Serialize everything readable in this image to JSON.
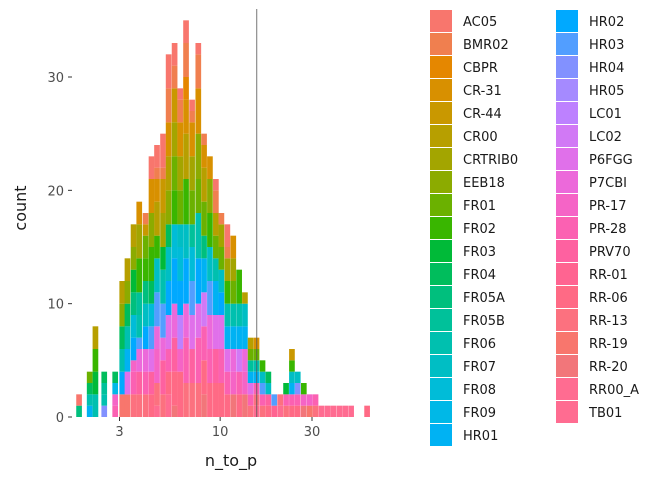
{
  "chart_data": {
    "type": "bar",
    "subtype": "stacked histogram",
    "title": "",
    "xlabel": "n_to_p",
    "ylabel": "count",
    "x_scale": "log10",
    "x_ticks": [
      3,
      10,
      30
    ],
    "x_tick_labels": [
      "3",
      "10",
      "30"
    ],
    "xlim": [
      1.7,
      80
    ],
    "ylim": [
      0,
      36
    ],
    "y_ticks": [
      0,
      10,
      20,
      30
    ],
    "y_tick_labels": [
      "0",
      "10",
      "20",
      "30"
    ],
    "vline_x": 15.5,
    "grid": false,
    "legend_position": "right",
    "legend_columns": 2,
    "bins": [
      {
        "center": 1.85,
        "counts": {
          "FR05A": 1,
          "AC05": 1
        }
      },
      {
        "center": 2.1,
        "counts": {
          "FR06": 1,
          "FR04": 1,
          "HR01": 1,
          "FR01": 1
        }
      },
      {
        "center": 2.25,
        "counts": {
          "FR03": 2,
          "FR06": 2,
          "FR02": 2,
          "CR00": 2
        }
      },
      {
        "center": 2.5,
        "counts": {
          "HR04": 1,
          "FR05B": 1,
          "FR06": 1,
          "FR04": 1
        }
      },
      {
        "center": 2.85,
        "counts": {
          "PR-17": 1,
          "PR-28": 1,
          "FR09": 1,
          "FR04": 1
        }
      },
      {
        "center": 3.1,
        "counts": {
          "RR-19": 2,
          "HR02": 2,
          "FR06": 2,
          "FR04": 2,
          "EEB18": 2,
          "CR00": 2
        }
      },
      {
        "center": 3.3,
        "counts": {
          "RR-19": 2,
          "P6FGG": 2,
          "HR01": 2,
          "FR06": 2,
          "FR04": 2,
          "EEB18": 2,
          "CR00": 2
        }
      },
      {
        "center": 3.55,
        "counts": {
          "RR-13": 2,
          "PR-28": 2,
          "PR-17": 1,
          "HR02": 2,
          "FR08": 2,
          "FR05A": 2,
          "FR03": 2,
          "EEB18": 2,
          "CR00": 2
        }
      },
      {
        "center": 3.8,
        "counts": {
          "RR-13": 2,
          "PRV70": 2,
          "P7CBI": 2,
          "HR03": 1,
          "FR06": 2,
          "FR05B": 2,
          "FR02": 3,
          "CRTRIB0": 3,
          "CR-31": 2
        }
      },
      {
        "center": 4.1,
        "counts": {
          "RR-13": 2,
          "PR-28": 2,
          "P7CBI": 2,
          "HR02": 2,
          "FR07": 2,
          "FR05A": 2,
          "FR02": 2,
          "FR01": 2,
          "CR-44": 1,
          "BMR02": 1
        }
      },
      {
        "center": 4.4,
        "counts": {
          "RR-06": 2,
          "PRV70": 2,
          "P6FGG": 2,
          "HR03": 2,
          "FR08": 2,
          "FR04": 2,
          "FR02": 3,
          "EEB18": 3,
          "CR-31": 3,
          "AC05": 2
        }
      },
      {
        "center": 4.7,
        "counts": {
          "RR-13": 2,
          "PR-17": 3,
          "P7CBI": 2,
          "HR03": 3,
          "FR07": 3,
          "FR02": 2,
          "CR00": 3,
          "CR-31": 2,
          "BMR02": 1,
          "AC05": 2,
          "TB01": 1
        }
      },
      {
        "center": 5.05,
        "counts": {
          "RR-13": 2,
          "PRV70": 3,
          "P7CBI": 2,
          "HR03": 3,
          "FR06": 3,
          "FR03": 2,
          "CRTRIB0": 3,
          "CR-44": 3,
          "BMR02": 1,
          "AC05": 3
        }
      },
      {
        "center": 5.4,
        "counts": {
          "RR-06": 2,
          "PR-28": 2,
          "P6FGG": 3,
          "HR02": 3,
          "FR07": 3,
          "FR04": 2,
          "EEB18": 3,
          "CR00": 3,
          "CR-31": 3,
          "BMR02": 3,
          "AC05": 3,
          "TB01": 2
        }
      },
      {
        "center": 5.8,
        "counts": {
          "RR-20": 1,
          "RR-06": 3,
          "PRV70": 3,
          "P7CBI": 3,
          "HR02": 4,
          "FR08": 3,
          "FR02": 3,
          "FR01": 3,
          "CRTRIB0": 3,
          "CR-44": 3,
          "BMR02": 2,
          "AC05": 2
        }
      },
      {
        "center": 6.2,
        "counts": {
          "RR-06": 4,
          "PR-17": 2,
          "LC01": 3,
          "HR02": 3,
          "FR08": 3,
          "FR07": 2,
          "FR01": 3,
          "CRTRIB0": 3,
          "CR-31": 3,
          "BMR02": 2,
          "AC05": 1
        }
      },
      {
        "center": 6.65,
        "counts": {
          "RR-13": 3,
          "PR-28": 4,
          "P7CBI": 3,
          "HR02": 4,
          "FR07": 3,
          "FR02": 4,
          "CR00": 4,
          "CR-31": 3,
          "CBPR": 2,
          "BMR02": 3,
          "AC05": 2
        }
      },
      {
        "center": 7.15,
        "counts": {
          "RR-13": 3,
          "PRV70": 3,
          "P6FGG": 3,
          "HR03": 3,
          "FR08": 3,
          "FR05B": 2,
          "FR01": 3,
          "CRTRIB0": 3,
          "CR-31": 3,
          "BMR02": 1,
          "AC05": 1
        }
      },
      {
        "center": 7.7,
        "counts": {
          "RR-13": 3,
          "PR-28": 4,
          "P6FGG": 3,
          "HR02": 4,
          "FR06": 4,
          "FR01": 3,
          "EEB18": 4,
          "CR-31": 4,
          "BMR02": 3,
          "AC05": 1
        }
      },
      {
        "center": 8.25,
        "counts": {
          "RR-20": 2,
          "RR-06": 3,
          "PR-28": 3,
          "LC02": 3,
          "HR01": 3,
          "FR05A": 2,
          "FR01": 3,
          "CR00": 3,
          "CR-31": 2,
          "BMR02": 1
        }
      },
      {
        "center": 8.85,
        "counts": {
          "RR-06": 3,
          "PR-28": 3,
          "P7CBI": 3,
          "HR03": 3,
          "FR07": 3,
          "FR02": 3,
          "EEB18": 3,
          "CR-31": 2
        }
      },
      {
        "center": 9.5,
        "counts": {
          "RR-06": 3,
          "PRV70": 3,
          "P6FGG": 3,
          "HR01": 3,
          "FR06": 2,
          "FR01": 2,
          "CR00": 2,
          "BMR02": 2,
          "AC05": 1
        }
      },
      {
        "center": 10.15,
        "counts": {
          "RR-06": 3,
          "PR-28": 3,
          "P6FGG": 3,
          "HR02": 2,
          "FR07": 2,
          "FR01": 2,
          "CRTRIB0": 2,
          "BMR02": 1
        }
      },
      {
        "center": 10.9,
        "counts": {
          "RR-06": 2,
          "PR-28": 2,
          "P6FGG": 2,
          "HR01": 2,
          "FR06": 2,
          "FR02": 2,
          "CRTRIB0": 2,
          "BMR02": 1,
          "AC05": 2
        }
      },
      {
        "center": 11.7,
        "counts": {
          "RR-20": 2,
          "PR-17": 2,
          "P7CBI": 2,
          "HR01": 2,
          "FR06": 2,
          "FR01": 2,
          "CRTRIB0": 2,
          "CR-31": 2
        }
      },
      {
        "center": 12.55,
        "counts": {
          "RR-06": 2,
          "PR-28": 2,
          "LC02": 2,
          "HR01": 2,
          "FR06": 2,
          "FR02": 3
        }
      },
      {
        "center": 13.45,
        "counts": {
          "RR-20": 2,
          "PR-17": 2,
          "P7CBI": 2,
          "HR01": 2,
          "FR07": 2,
          "CR00": 1
        }
      },
      {
        "center": 14.4,
        "counts": {
          "RR-13": 1,
          "PR-28": 1,
          "P6FGG": 1,
          "HR01": 1,
          "FR05B": 1,
          "FR01": 1,
          "CR00": 1
        }
      },
      {
        "center": 15.45,
        "counts": {
          "TB01": 1,
          "RR-13": 1,
          "PR-28": 1,
          "HR01": 1,
          "FR06": 1,
          "FR01": 1,
          "CR-31": 1
        }
      },
      {
        "center": 16.6,
        "counts": {
          "RR-13": 1,
          "PR-28": 1,
          "HR03": 1,
          "FR07": 1,
          "FR02": 1
        }
      },
      {
        "center": 17.8,
        "counts": {
          "RR-06": 1,
          "PRV70": 1,
          "FR07": 1,
          "FR04": 1
        }
      },
      {
        "center": 19.1,
        "counts": {
          "RR-01": 1,
          "HR03": 1
        }
      },
      {
        "center": 20.5,
        "counts": {
          "TB01": 1,
          "RR-13": 1
        }
      },
      {
        "center": 22,
        "counts": {
          "RR-13": 1,
          "PR-28": 1,
          "FR03": 1
        }
      },
      {
        "center": 23.6,
        "counts": {
          "RR-06": 1,
          "PR-28": 1,
          "HR01": 1,
          "FR07": 1,
          "FR02": 1,
          "CR-44": 1
        }
      },
      {
        "center": 25.3,
        "counts": {
          "RR-06": 1,
          "PR-28": 1,
          "HR04": 1,
          "FR07": 1
        }
      },
      {
        "center": 27.2,
        "counts": {
          "RR-20": 1,
          "PR-17": 1,
          "FR02": 1
        }
      },
      {
        "center": 29.2,
        "counts": {
          "RR-19": 1,
          "PR-17": 1
        }
      },
      {
        "center": 31.3,
        "counts": {
          "RR-13": 1,
          "PR-28": 1
        }
      },
      {
        "center": 33.6,
        "counts": {
          "TB01": 1
        }
      },
      {
        "center": 36.1,
        "counts": {
          "TB01": 1
        }
      },
      {
        "center": 38.7,
        "counts": {
          "TB01": 1
        }
      },
      {
        "center": 41.6,
        "counts": {
          "TB01": 1
        }
      },
      {
        "center": 44.6,
        "counts": {
          "TB01": 1
        }
      },
      {
        "center": 47.9,
        "counts": {
          "TB01": 1
        }
      },
      {
        "center": 58,
        "counts": {
          "RR-06": 1
        }
      }
    ],
    "legend": [
      {
        "name": "AC05",
        "color": "#F8766D"
      },
      {
        "name": "BMR02",
        "color": "#F07F4F"
      },
      {
        "name": "CBPR",
        "color": "#E58700"
      },
      {
        "name": "CR-31",
        "color": "#D89000"
      },
      {
        "name": "CR-44",
        "color": "#C99800"
      },
      {
        "name": "CR00",
        "color": "#B79F00"
      },
      {
        "name": "CRTRIB0",
        "color": "#A3A500"
      },
      {
        "name": "EEB18",
        "color": "#8CAB00"
      },
      {
        "name": "FR01",
        "color": "#6BB100"
      },
      {
        "name": "FR02",
        "color": "#39B600"
      },
      {
        "name": "FR03",
        "color": "#00BA38"
      },
      {
        "name": "FR04",
        "color": "#00BD5C"
      },
      {
        "name": "FR05A",
        "color": "#00BF7D"
      },
      {
        "name": "FR05B",
        "color": "#00C19A"
      },
      {
        "name": "FR06",
        "color": "#00C0AF"
      },
      {
        "name": "FR07",
        "color": "#00BEC4"
      },
      {
        "name": "FR08",
        "color": "#00BCD8"
      },
      {
        "name": "FR09",
        "color": "#00B8E7"
      },
      {
        "name": "HR01",
        "color": "#00B2F3"
      },
      {
        "name": "HR02",
        "color": "#00A9FF"
      },
      {
        "name": "HR03",
        "color": "#529EFF"
      },
      {
        "name": "HR04",
        "color": "#8291FF"
      },
      {
        "name": "HR05",
        "color": "#A58AFF"
      },
      {
        "name": "LC01",
        "color": "#BD81FF"
      },
      {
        "name": "LC02",
        "color": "#D179F5"
      },
      {
        "name": "P6FGG",
        "color": "#E070EA"
      },
      {
        "name": "P7CBI",
        "color": "#EC69DA"
      },
      {
        "name": "PR-17",
        "color": "#F564C6"
      },
      {
        "name": "PR-28",
        "color": "#FB61B2"
      },
      {
        "name": "PRV70",
        "color": "#FE61A0"
      },
      {
        "name": "RR-01",
        "color": "#FF6491"
      },
      {
        "name": "RR-06",
        "color": "#FF6A85"
      },
      {
        "name": "RR-13",
        "color": "#FC717F"
      },
      {
        "name": "RR-19",
        "color": "#F8766D"
      },
      {
        "name": "RR-20",
        "color": "#F2767A"
      },
      {
        "name": "RR00_A",
        "color": "#FF6C91"
      },
      {
        "name": "TB01",
        "color": "#FF6C91"
      }
    ]
  }
}
